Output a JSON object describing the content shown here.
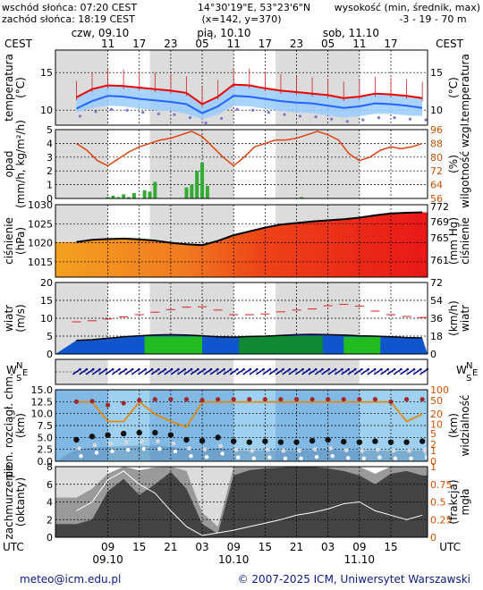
{
  "header": {
    "sunrise": "wschód słońca: 07:20 CEST",
    "sunset": "zachód słońca: 18:19 CEST",
    "coords": "14°30'19\"E, 53°23'6\"N",
    "grid": "(x=142, y=370)",
    "altitude_title": "wysokość (min, średnik, max)",
    "altitude_values": "-3 - 19 - 70 m"
  },
  "top_axis": {
    "tz_left": "CEST",
    "tz_right": "CEST",
    "dates": [
      {
        "text": "czw, 09.10",
        "hour": 4
      },
      {
        "text": "pią, 10.10",
        "hour": 28
      },
      {
        "text": "sob, 11.10",
        "hour": 52
      }
    ],
    "hours": [
      {
        "text": "11",
        "hour": 11
      },
      {
        "text": "17",
        "hour": 17
      },
      {
        "text": "23",
        "hour": 23
      },
      {
        "text": "05",
        "hour": 29
      },
      {
        "text": "11",
        "hour": 35
      },
      {
        "text": "17",
        "hour": 41
      },
      {
        "text": "23",
        "hour": 47
      },
      {
        "text": "05",
        "hour": 53
      },
      {
        "text": "11",
        "hour": 59
      },
      {
        "text": "17",
        "hour": 65
      }
    ]
  },
  "bottom_axis": {
    "tz_left": "UTC",
    "tz_right": "UTC",
    "hours": [
      {
        "text": "09",
        "hour": 11
      },
      {
        "text": "15",
        "hour": 17
      },
      {
        "text": "21",
        "hour": 23
      },
      {
        "text": "03",
        "hour": 29
      },
      {
        "text": "09",
        "hour": 35
      },
      {
        "text": "15",
        "hour": 41
      },
      {
        "text": "21",
        "hour": 47
      },
      {
        "text": "03",
        "hour": 53
      },
      {
        "text": "09",
        "hour": 59
      },
      {
        "text": "15",
        "hour": 65
      }
    ],
    "dates": [
      {
        "text": "09.10",
        "hour": 11
      },
      {
        "text": "10.10",
        "hour": 35
      },
      {
        "text": "11.10",
        "hour": 59
      }
    ]
  },
  "night_bands": [
    [
      1,
      11
    ],
    [
      19,
      35
    ],
    [
      43,
      59
    ]
  ],
  "footer": {
    "left": "meteo@icm.edu.pl",
    "right": "© 2007-2025 ICM, Uniwersytet Warszawski"
  },
  "chart_data": [
    {
      "type": "line",
      "name": "temperature",
      "ylabel_left": "temperatura",
      "ylabel_left_unit": "(°C)",
      "ylabel_right": "temperatura",
      "ylabel_right_unit": "(°C)",
      "ylim": [
        8,
        18
      ],
      "yticks": [
        10,
        15
      ],
      "colors": {
        "max": "#ee0000",
        "mean": "#2266ff",
        "band": "#99ccff",
        "dots": "#7777cc"
      },
      "x": [
        5,
        8,
        11,
        14,
        17,
        20,
        23,
        26,
        29,
        32,
        35,
        38,
        41,
        44,
        47,
        50,
        53,
        56,
        59,
        62,
        65,
        68,
        71
      ],
      "max": [
        11.7,
        12.8,
        13.3,
        13.2,
        13.0,
        12.8,
        12.6,
        12.3,
        10.8,
        11.8,
        13.4,
        13.3,
        12.9,
        12.6,
        12.4,
        12.2,
        12.0,
        11.6,
        11.8,
        12.2,
        12.1,
        11.9,
        11.6
      ],
      "mean": [
        10.2,
        11.2,
        11.9,
        11.8,
        11.5,
        11.3,
        11.1,
        10.8,
        9.6,
        10.5,
        11.9,
        11.8,
        11.5,
        11.2,
        11.0,
        10.9,
        10.6,
        10.3,
        10.5,
        10.9,
        10.8,
        10.6,
        10.3
      ],
      "min": [
        9.7,
        10.3,
        10.6,
        10.5,
        10.2,
        10.0,
        9.9,
        9.5,
        8.8,
        9.4,
        10.6,
        10.5,
        10.2,
        9.9,
        9.7,
        9.6,
        9.3,
        9.0,
        9.2,
        9.5,
        9.5,
        9.3,
        9.2
      ]
    },
    {
      "type": "line",
      "name": "precipitation-humidity",
      "ylabel_left": "opad",
      "ylabel_left_unit": "(mm/h, kg/m²/h)",
      "ylabel_right": "wilgotność wzgl.",
      "ylabel_right_unit": "(%)",
      "ylim": [
        0,
        5
      ],
      "yticks": [
        0,
        1,
        2,
        3,
        4,
        5
      ],
      "y2lim": [
        56,
        96
      ],
      "y2ticks": [
        56,
        64,
        72,
        80,
        88,
        96
      ],
      "x": [
        5,
        7,
        9,
        11,
        13,
        15,
        17,
        19,
        21,
        23,
        25,
        27,
        29,
        31,
        33,
        35,
        37,
        39,
        41,
        43,
        45,
        47,
        49,
        51,
        53,
        55,
        57,
        59,
        61,
        63,
        65,
        67,
        69,
        71
      ],
      "humidity": [
        88,
        84,
        78,
        75,
        79,
        83,
        86,
        88,
        90,
        91,
        93,
        95,
        92,
        86,
        80,
        75,
        80,
        86,
        88,
        90,
        90,
        91,
        93,
        95,
        93,
        90,
        82,
        78,
        80,
        84,
        86,
        85,
        86,
        88
      ],
      "precip_hours": [
        11,
        12,
        13,
        14,
        15,
        16,
        18,
        19,
        20,
        26,
        27,
        28,
        29,
        30,
        48
      ],
      "precip_mm": [
        0.1,
        0.2,
        0.1,
        0.3,
        0.1,
        0.4,
        0.6,
        0.5,
        1.2,
        0.8,
        1.0,
        2.0,
        2.6,
        0.9,
        0.1
      ]
    },
    {
      "type": "area",
      "name": "pressure",
      "ylabel_left": "ciśnienie",
      "ylabel_left_unit": "(hPa)",
      "ylabel_right": "ciśnienie",
      "ylabel_right_unit": "(mm Hg)",
      "ylim": [
        1011,
        1030
      ],
      "yticks": [
        1015,
        1020,
        1025,
        1030
      ],
      "y2ticks": [
        761,
        765,
        769,
        772
      ],
      "x": [
        5,
        8,
        11,
        14,
        17,
        20,
        23,
        26,
        29,
        32,
        35,
        38,
        41,
        44,
        47,
        50,
        53,
        56,
        59,
        62,
        65,
        68,
        71
      ],
      "values": [
        1020.2,
        1020.8,
        1021.0,
        1021.1,
        1020.9,
        1020.6,
        1020.0,
        1019.6,
        1019.4,
        1020.5,
        1022.0,
        1023.0,
        1024.0,
        1024.8,
        1025.2,
        1025.6,
        1025.9,
        1026.2,
        1026.6,
        1027.2,
        1027.7,
        1027.9,
        1028.0
      ]
    },
    {
      "type": "line",
      "name": "wind",
      "ylabel_left": "wiatr",
      "ylabel_left_unit": "(m/s)",
      "ylabel_right": "wiatr",
      "ylabel_right_unit": "(km/h)",
      "ylim": [
        0,
        20
      ],
      "yticks": [
        0,
        5,
        10,
        15,
        20
      ],
      "y2ticks": [
        0,
        18,
        36,
        54,
        72
      ],
      "x": [
        5,
        8,
        11,
        14,
        17,
        20,
        23,
        26,
        29,
        32,
        35,
        38,
        41,
        44,
        47,
        50,
        53,
        56,
        59,
        62,
        65,
        68,
        71
      ],
      "gusts": [
        9.0,
        9.3,
        9.8,
        10.4,
        11.0,
        11.7,
        12.4,
        13.1,
        13.2,
        12.3,
        11.0,
        11.0,
        11.2,
        11.8,
        12.3,
        12.6,
        13.5,
        13.9,
        13.4,
        12.0,
        11.0,
        10.5,
        10.2
      ],
      "speed": [
        3.8,
        4.0,
        4.4,
        4.8,
        5.1,
        5.3,
        5.4,
        5.3,
        5.1,
        4.8,
        4.7,
        4.9,
        5.0,
        5.2,
        5.4,
        5.5,
        5.4,
        5.3,
        5.1,
        5.0,
        4.8,
        4.6,
        4.5
      ]
    },
    {
      "type": "scatter",
      "name": "wind-direction",
      "ylabel_left_letters": [
        "W",
        "N",
        "S",
        "E"
      ],
      "ylabel_right_letters": [
        "W",
        "N",
        "S",
        "E"
      ],
      "x_start": 5,
      "x_step": 1.25,
      "count": 54,
      "direction_deg": 235
    },
    {
      "type": "scatter",
      "name": "cloud-base-visibility",
      "ylabel_left": "pion. rozciągł. chm.",
      "ylabel_left_unit": "(km)",
      "ylabel_right": "widzialność",
      "ylabel_right_unit": "(km)",
      "ylim": [
        0,
        15
      ],
      "yticks": [
        0,
        2.5,
        5,
        7.5,
        10,
        12.5,
        15
      ],
      "ytick_labels": [
        "0.0",
        "2.5",
        "5.0",
        "7.5",
        "10.0",
        "12.5",
        "15.0"
      ],
      "y2lim": [
        0,
        100
      ],
      "y2ticks": [
        0,
        1,
        2,
        5,
        10,
        20,
        50,
        100
      ],
      "x": [
        5,
        8,
        11,
        14,
        17,
        20,
        23,
        26,
        29,
        32,
        35,
        38,
        41,
        44,
        47,
        50,
        53,
        56,
        59,
        62,
        65,
        68,
        71
      ],
      "visibility_km": [
        45,
        45,
        12,
        12,
        45,
        20,
        12,
        8,
        45,
        45,
        45,
        45,
        45,
        45,
        45,
        45,
        45,
        45,
        45,
        45,
        45,
        12,
        20
      ],
      "cloud_top_km": [
        12.5,
        12.6,
        11.8,
        12.2,
        12.8,
        13.0,
        13.0,
        13.0,
        12.8,
        13.0,
        13.0,
        13.0,
        13.0,
        13.0,
        13.0,
        13.0,
        13.0,
        13.0,
        13.0,
        13.0,
        12.5,
        13.0,
        13.0
      ],
      "cloud_base_km": [
        4.5,
        5.2,
        5.5,
        5.8,
        6.0,
        6.0,
        5.5,
        4.5,
        4.3,
        5.0,
        4.2,
        4.0,
        4.2,
        4.0,
        4.0,
        4.3,
        4.5,
        4.1,
        4.0,
        4.2,
        4.0,
        4.0,
        4.2
      ]
    },
    {
      "type": "area",
      "name": "cloudiness-fog",
      "ylabel_left": "zachmurzenie",
      "ylabel_left_unit": "(oktanty)",
      "ylabel_right": "mgła",
      "ylabel_right_unit": "(frakcja)",
      "ylim": [
        0,
        8
      ],
      "yticks": [
        0,
        2,
        4,
        6,
        8
      ],
      "y2ticks": [
        0,
        0.25,
        0.5,
        0.75,
        1
      ],
      "y2tick_labels": [
        "0",
        "0.25",
        "0.5",
        "0.75",
        "1"
      ],
      "x": [
        5,
        8,
        11,
        14,
        17,
        20,
        23,
        26,
        29,
        32,
        35,
        38,
        41,
        44,
        47,
        50,
        53,
        56,
        59,
        62,
        65,
        68,
        71
      ],
      "total_octas": [
        4.5,
        5.5,
        7.2,
        8.0,
        7.6,
        7.9,
        8.0,
        7.5,
        2.8,
        1.2,
        8.0,
        8.0,
        8.0,
        8.0,
        8.0,
        8.0,
        8.0,
        8.0,
        8.0,
        7.2,
        8.0,
        8.0,
        8.0
      ],
      "low_octas": [
        1.5,
        2.0,
        5.2,
        6.6,
        4.8,
        6.0,
        7.4,
        5.5,
        1.5,
        0.4,
        7.0,
        7.6,
        7.8,
        7.9,
        8.0,
        8.0,
        7.8,
        7.5,
        7.0,
        6.0,
        7.2,
        7.5,
        7.0
      ],
      "line_octas": [
        3.0,
        4.0,
        6.5,
        7.5,
        6.0,
        5.0,
        3.0,
        1.2,
        0.2,
        0.5,
        0.8,
        1.2,
        1.6,
        2.0,
        2.5,
        2.8,
        3.2,
        3.8,
        4.0,
        3.0,
        2.5,
        2.0,
        2.5
      ]
    }
  ]
}
